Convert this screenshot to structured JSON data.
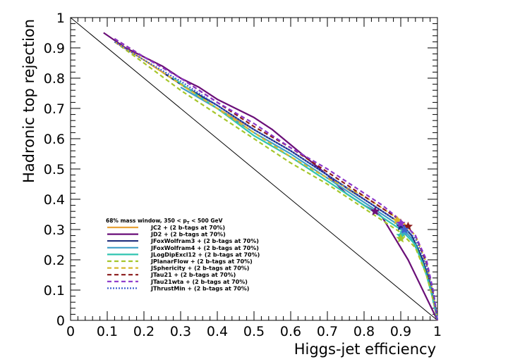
{
  "chart_data": {
    "type": "line",
    "xlabel": "Higgs-jet efficiency",
    "ylabel": "Hadronic top rejection",
    "xlim": [
      0,
      1
    ],
    "ylim": [
      0,
      1
    ],
    "x_ticks": [
      "0",
      "0.1",
      "0.2",
      "0.3",
      "0.4",
      "0.5",
      "0.6",
      "0.7",
      "0.8",
      "0.9",
      "1"
    ],
    "y_ticks": [
      "0",
      "0.1",
      "0.2",
      "0.3",
      "0.4",
      "0.5",
      "0.6",
      "0.7",
      "0.8",
      "0.9",
      "1"
    ],
    "grid": false,
    "legend_position": "bottom-left",
    "legend_title": "68% mass window, 350 < p",
    "legend_title_sub": "T",
    "legend_title_end": " < 500 GeV",
    "reference_line": {
      "x": [
        0,
        1
      ],
      "y": [
        1,
        0
      ],
      "color": "#000000"
    },
    "series": [
      {
        "name": "JC2 + (2 b-tags at 70%)",
        "color": "#e8a33a",
        "dash": "solid",
        "x": [
          0.12,
          0.2,
          0.3,
          0.4,
          0.5,
          0.6,
          0.7,
          0.76,
          0.8,
          0.85,
          0.9,
          0.93,
          0.96,
          0.98,
          1.0
        ],
        "y": [
          0.92,
          0.86,
          0.78,
          0.7,
          0.63,
          0.56,
          0.48,
          0.43,
          0.4,
          0.36,
          0.32,
          0.28,
          0.2,
          0.12,
          0.0
        ],
        "marker": {
          "x": 0.91,
          "y": 0.31
        }
      },
      {
        "name": "JD2 + (2 b-tags at 70%)",
        "color": "#6a0f78",
        "dash": "solid",
        "x": [
          0.09,
          0.15,
          0.2,
          0.25,
          0.3,
          0.35,
          0.4,
          0.45,
          0.5,
          0.55,
          0.6,
          0.65,
          0.7,
          0.75,
          0.8,
          0.83,
          0.85,
          0.88,
          0.92,
          0.96,
          0.98,
          1.0
        ],
        "y": [
          0.95,
          0.9,
          0.87,
          0.84,
          0.8,
          0.77,
          0.73,
          0.7,
          0.67,
          0.63,
          0.58,
          0.53,
          0.48,
          0.42,
          0.38,
          0.36,
          0.34,
          0.28,
          0.2,
          0.1,
          0.05,
          0.0
        ],
        "marker": {
          "x": 0.83,
          "y": 0.36
        }
      },
      {
        "name": "JFoxWolfram3 + (2 b-tags at 70%)",
        "color": "#1b2a7a",
        "dash": "solid",
        "x": [
          0.25,
          0.3,
          0.4,
          0.5,
          0.6,
          0.7,
          0.75,
          0.8,
          0.85,
          0.9,
          0.93,
          0.96,
          0.98,
          1.0
        ],
        "y": [
          0.82,
          0.78,
          0.71,
          0.63,
          0.56,
          0.48,
          0.44,
          0.4,
          0.36,
          0.32,
          0.28,
          0.2,
          0.12,
          0.0
        ],
        "marker": {
          "x": 0.9,
          "y": 0.31
        }
      },
      {
        "name": "JFoxWolfram4 + (2 b-tags at 70%)",
        "color": "#3f9fc8",
        "dash": "solid",
        "x": [
          0.3,
          0.4,
          0.5,
          0.6,
          0.7,
          0.75,
          0.8,
          0.85,
          0.9,
          0.93,
          0.96,
          0.98,
          1.0
        ],
        "y": [
          0.77,
          0.7,
          0.62,
          0.55,
          0.47,
          0.43,
          0.39,
          0.35,
          0.31,
          0.27,
          0.19,
          0.11,
          0.0
        ],
        "marker": {
          "x": 0.91,
          "y": 0.29
        }
      },
      {
        "name": "JLogDipExcl12 + (2 b-tags at 70%)",
        "color": "#2fc4b0",
        "dash": "solid",
        "x": [
          0.28,
          0.35,
          0.4,
          0.5,
          0.6,
          0.7,
          0.75,
          0.8,
          0.85,
          0.9,
          0.94,
          0.97,
          0.99,
          1.0
        ],
        "y": [
          0.8,
          0.74,
          0.7,
          0.61,
          0.54,
          0.46,
          0.42,
          0.38,
          0.34,
          0.3,
          0.25,
          0.15,
          0.06,
          0.0
        ],
        "marker": {
          "x": 0.9,
          "y": 0.28
        }
      },
      {
        "name": "JPlanarFlow + (2 b-tags at 70%)",
        "color": "#a6c62b",
        "dash": "dashed",
        "x": [
          0.12,
          0.2,
          0.3,
          0.4,
          0.5,
          0.6,
          0.7,
          0.75,
          0.8,
          0.85,
          0.9,
          0.94,
          0.97,
          0.99,
          1.0
        ],
        "y": [
          0.92,
          0.85,
          0.76,
          0.68,
          0.6,
          0.52,
          0.45,
          0.41,
          0.37,
          0.33,
          0.29,
          0.24,
          0.15,
          0.06,
          0.0
        ],
        "marker": {
          "x": 0.9,
          "y": 0.27
        }
      },
      {
        "name": "JSphericity + (2 b-tags at 70%)",
        "color": "#d6b82e",
        "dash": "dashed",
        "x": [
          0.12,
          0.2,
          0.3,
          0.4,
          0.5,
          0.6,
          0.7,
          0.75,
          0.8,
          0.85,
          0.9,
          0.94,
          0.97,
          0.99,
          1.0
        ],
        "y": [
          0.92,
          0.86,
          0.78,
          0.7,
          0.62,
          0.54,
          0.47,
          0.44,
          0.41,
          0.37,
          0.33,
          0.28,
          0.19,
          0.08,
          0.0
        ],
        "marker": {
          "x": 0.89,
          "y": 0.33
        }
      },
      {
        "name": "JTau21 + (2 b-tags at 70%)",
        "color": "#8b1a1a",
        "dash": "dashed",
        "x": [
          0.12,
          0.2,
          0.3,
          0.4,
          0.5,
          0.6,
          0.7,
          0.75,
          0.8,
          0.85,
          0.9,
          0.94,
          0.97,
          0.99,
          1.0
        ],
        "y": [
          0.93,
          0.87,
          0.8,
          0.72,
          0.64,
          0.57,
          0.49,
          0.45,
          0.41,
          0.37,
          0.33,
          0.28,
          0.19,
          0.08,
          0.0
        ],
        "marker": {
          "x": 0.92,
          "y": 0.31
        }
      },
      {
        "name": "JTau21wta + (2 b-tags at 70%)",
        "color": "#8a35c9",
        "dash": "dashed",
        "x": [
          0.12,
          0.2,
          0.3,
          0.4,
          0.5,
          0.6,
          0.7,
          0.75,
          0.8,
          0.85,
          0.9,
          0.94,
          0.97,
          0.99,
          1.0
        ],
        "y": [
          0.93,
          0.87,
          0.8,
          0.72,
          0.65,
          0.57,
          0.5,
          0.46,
          0.42,
          0.38,
          0.33,
          0.28,
          0.2,
          0.09,
          0.0
        ],
        "marker": {
          "x": 0.9,
          "y": 0.32
        }
      },
      {
        "name": "JThrustMin + (2 b-tags at 70%)",
        "color": "#3f5fd0",
        "dash": "dotted",
        "x": [
          0.12,
          0.2,
          0.3,
          0.4,
          0.5,
          0.6,
          0.7,
          0.75,
          0.8,
          0.85,
          0.9,
          0.94,
          0.97,
          0.99,
          1.0
        ],
        "y": [
          0.92,
          0.86,
          0.79,
          0.71,
          0.63,
          0.56,
          0.48,
          0.44,
          0.4,
          0.36,
          0.32,
          0.27,
          0.18,
          0.08,
          0.0
        ],
        "marker": {
          "x": 0.91,
          "y": 0.3
        }
      }
    ]
  }
}
